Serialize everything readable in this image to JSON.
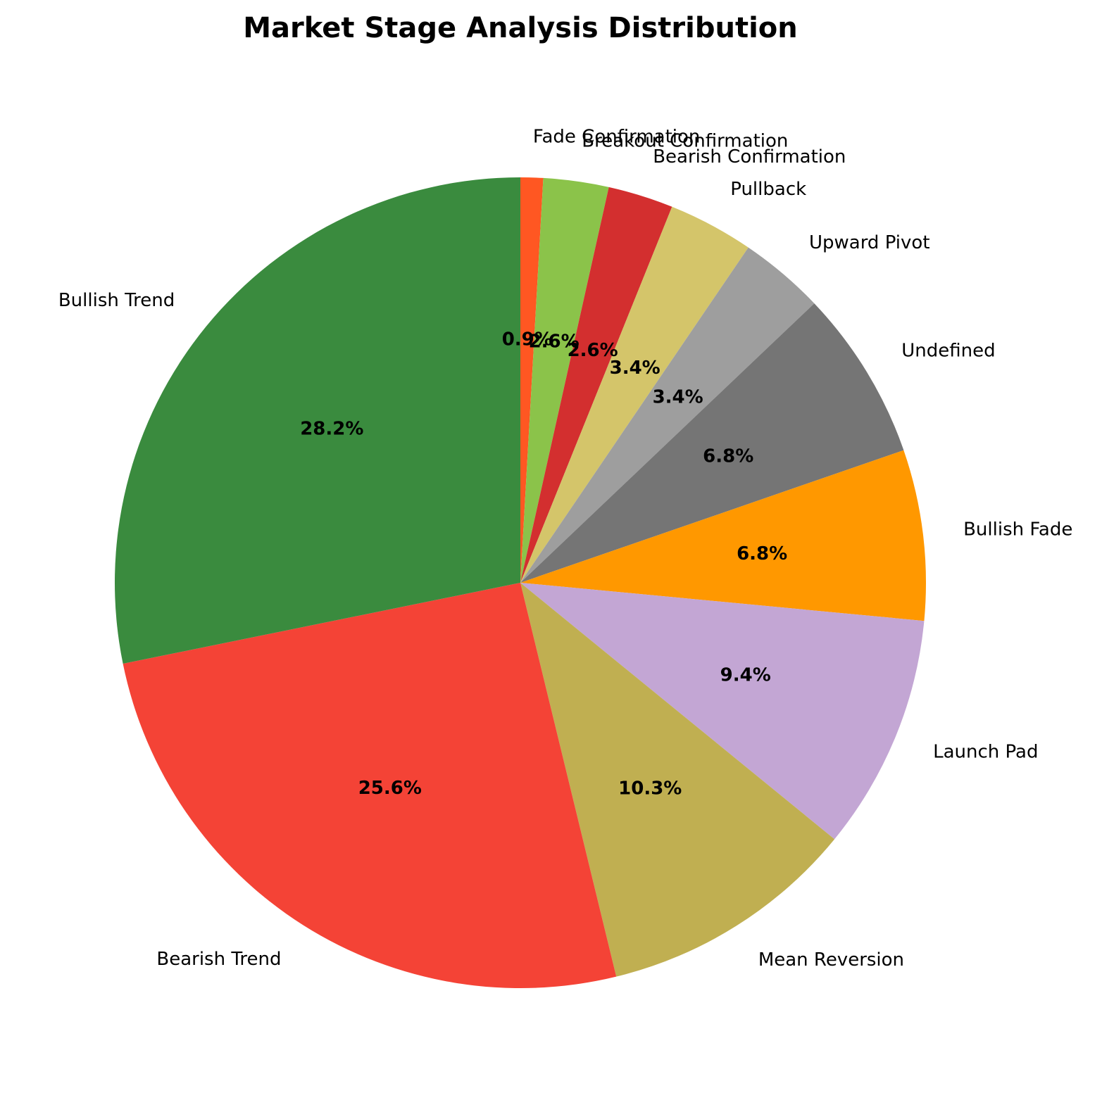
{
  "chart_data": {
    "type": "pie",
    "title": "Market Stage Analysis Distribution",
    "start_angle_deg": 90,
    "direction": "clockwise",
    "slices": [
      {
        "label": "Fade Confirmation",
        "value": 0.9,
        "pct_label": "0.9%",
        "color": "#ff5722"
      },
      {
        "label": "Breakout Confirmation",
        "value": 2.6,
        "pct_label": "2.6%",
        "color": "#8bc34a"
      },
      {
        "label": "Bearish Confirmation",
        "value": 2.6,
        "pct_label": "2.6%",
        "color": "#d32f2f"
      },
      {
        "label": "Pullback",
        "value": 3.4,
        "pct_label": "3.4%",
        "color": "#d4c56a"
      },
      {
        "label": "Upward Pivot",
        "value": 3.4,
        "pct_label": "3.4%",
        "color": "#9e9e9e"
      },
      {
        "label": "Undefined",
        "value": 6.8,
        "pct_label": "6.8%",
        "color": "#757575"
      },
      {
        "label": "Bullish Fade",
        "value": 6.8,
        "pct_label": "6.8%",
        "color": "#ff9800"
      },
      {
        "label": "Launch Pad",
        "value": 9.4,
        "pct_label": "9.4%",
        "color": "#c3a6d4"
      },
      {
        "label": "Mean Reversion",
        "value": 10.3,
        "pct_label": "10.3%",
        "color": "#c0af51"
      },
      {
        "label": "Bearish Trend",
        "value": 25.6,
        "pct_label": "25.6%",
        "color": "#f44336"
      },
      {
        "label": "Bullish Trend",
        "value": 28.2,
        "pct_label": "28.2%",
        "color": "#3a8b3e"
      }
    ]
  }
}
